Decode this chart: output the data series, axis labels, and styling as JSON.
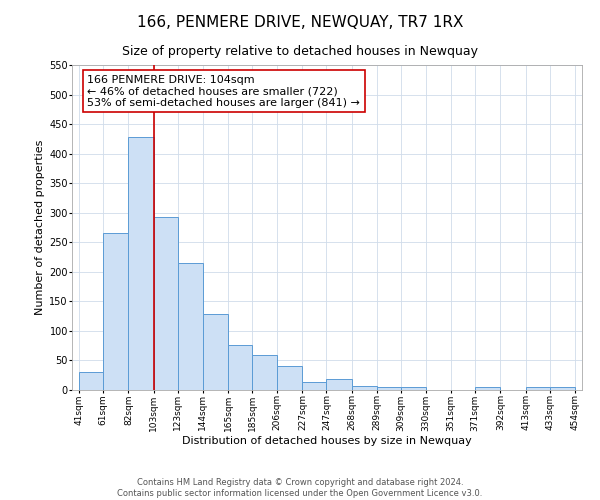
{
  "title": "166, PENMERE DRIVE, NEWQUAY, TR7 1RX",
  "subtitle": "Size of property relative to detached houses in Newquay",
  "xlabel": "Distribution of detached houses by size in Newquay",
  "ylabel": "Number of detached properties",
  "bar_left_edges": [
    41,
    61,
    82,
    103,
    123,
    144,
    165,
    185,
    206,
    227,
    247,
    268,
    289,
    309,
    330,
    351,
    371,
    392,
    413,
    433
  ],
  "bar_widths": [
    20,
    21,
    21,
    20,
    21,
    21,
    20,
    21,
    21,
    20,
    21,
    21,
    20,
    21,
    21,
    20,
    21,
    21,
    20,
    21
  ],
  "bar_heights": [
    30,
    265,
    428,
    293,
    215,
    128,
    77,
    59,
    40,
    13,
    18,
    7,
    5,
    5,
    0,
    0,
    5,
    0,
    5,
    5
  ],
  "tick_labels": [
    "41sqm",
    "61sqm",
    "82sqm",
    "103sqm",
    "123sqm",
    "144sqm",
    "165sqm",
    "185sqm",
    "206sqm",
    "227sqm",
    "247sqm",
    "268sqm",
    "289sqm",
    "309sqm",
    "330sqm",
    "351sqm",
    "371sqm",
    "392sqm",
    "413sqm",
    "433sqm",
    "454sqm"
  ],
  "tick_positions": [
    41,
    61,
    82,
    103,
    123,
    144,
    165,
    185,
    206,
    227,
    247,
    268,
    289,
    309,
    330,
    351,
    371,
    392,
    413,
    433,
    454
  ],
  "ylim": [
    0,
    550
  ],
  "xlim": [
    35,
    460
  ],
  "bar_color": "#cde0f5",
  "bar_edge_color": "#5b9bd5",
  "vline_x": 103,
  "vline_color": "#cc0000",
  "annotation_title": "166 PENMERE DRIVE: 104sqm",
  "annotation_line1": "← 46% of detached houses are smaller (722)",
  "annotation_line2": "53% of semi-detached houses are larger (841) →",
  "annotation_box_color": "#ffffff",
  "annotation_box_edge": "#cc0000",
  "footer_line1": "Contains HM Land Registry data © Crown copyright and database right 2024.",
  "footer_line2": "Contains public sector information licensed under the Open Government Licence v3.0.",
  "title_fontsize": 11,
  "subtitle_fontsize": 9,
  "ylabel_fontsize": 8,
  "xlabel_fontsize": 8,
  "tick_fontsize": 6.5,
  "annotation_fontsize": 8,
  "footer_fontsize": 6,
  "yticks": [
    0,
    50,
    100,
    150,
    200,
    250,
    300,
    350,
    400,
    450,
    500,
    550
  ],
  "grid_color": "#d0dcea"
}
